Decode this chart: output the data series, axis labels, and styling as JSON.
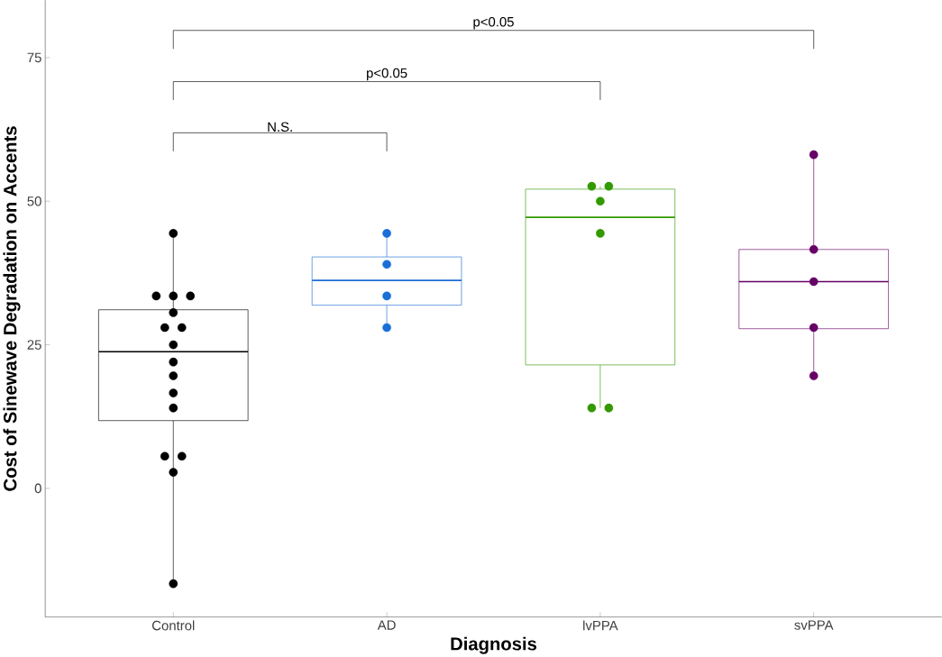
{
  "chart_data": {
    "type": "box",
    "xlabel": "Diagnosis",
    "ylabel": "Cost of Sinewave Degradation on Accents",
    "categories": [
      "Control",
      "AD",
      "lvPPA",
      "svPPA"
    ],
    "colors": [
      "#000000",
      "#1a6ed8",
      "#339900",
      "#660066"
    ],
    "boxes": [
      {
        "low": -16.6,
        "q1": 11.8,
        "median": 23.8,
        "q3": 31.1,
        "high": 44.4
      },
      {
        "low": 27.8,
        "q1": 31.9,
        "median": 36.2,
        "q3": 40.3,
        "high": 44.4
      },
      {
        "low": 14.0,
        "q1": 21.5,
        "median": 47.2,
        "q3": 52.1,
        "high": 52.6
      },
      {
        "low": 19.6,
        "q1": 27.8,
        "median": 36.0,
        "q3": 41.6,
        "high": 58.1
      }
    ],
    "series": [
      {
        "type": "scatter",
        "color": "#000000",
        "x": [
          "Control",
          "Control",
          "Control",
          "Control",
          "Control",
          "Control",
          "Control",
          "Control",
          "Control",
          "Control",
          "Control",
          "Control",
          "Control",
          "Control",
          "Control",
          "Control"
        ],
        "values": [
          44.4,
          33.5,
          33.5,
          33.5,
          30.6,
          28.0,
          28.0,
          25.0,
          22.0,
          19.6,
          16.6,
          14.0,
          5.6,
          5.6,
          2.8,
          -16.6
        ]
      },
      {
        "type": "scatter",
        "color": "#1a6ed8",
        "x": [
          "AD",
          "AD",
          "AD",
          "AD"
        ],
        "values": [
          44.4,
          39.0,
          33.5,
          28.0
        ]
      },
      {
        "type": "scatter",
        "color": "#339900",
        "x": [
          "lvPPA",
          "lvPPA",
          "lvPPA",
          "lvPPA",
          "lvPPA",
          "lvPPA"
        ],
        "values": [
          52.6,
          52.6,
          50.0,
          44.4,
          14.0,
          14.0
        ]
      },
      {
        "type": "scatter",
        "color": "#660066",
        "x": [
          "svPPA",
          "svPPA",
          "svPPA",
          "svPPA",
          "svPPA"
        ],
        "values": [
          58.1,
          41.6,
          36.0,
          28.0,
          19.6
        ]
      }
    ],
    "ylim": [
      -22.4,
      85
    ],
    "yticks": [
      0,
      25,
      50,
      75
    ],
    "annotations": [
      "N.S.",
      "p<0.05",
      "p<0.05"
    ],
    "grid": false,
    "marker": "circle"
  }
}
